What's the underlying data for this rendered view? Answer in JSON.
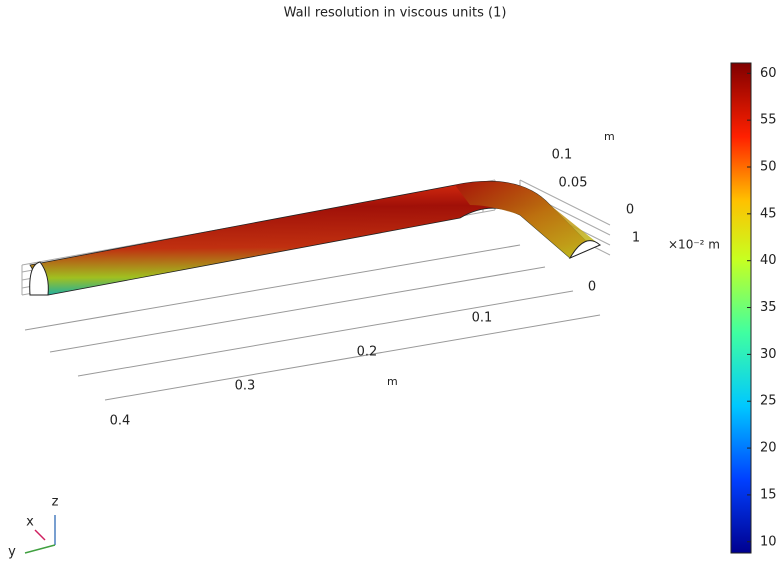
{
  "title": "Wall resolution in viscous units (1)",
  "colorbar": {
    "range": [
      8.8,
      61.1
    ],
    "ticks": [
      10,
      15,
      20,
      25,
      30,
      35,
      40,
      45,
      50,
      55,
      60
    ]
  },
  "axes": {
    "x_ticks": [
      "0",
      "0.1",
      "0.2",
      "0.3",
      "0.4"
    ],
    "x_unit": "m",
    "y_ticks": [
      "0.1",
      "0.05",
      "0",
      "1"
    ],
    "y_unit": "m",
    "scale_unit": "×10⁻² m"
  },
  "triad": {
    "x": "x",
    "y": "y",
    "z": "z"
  }
}
